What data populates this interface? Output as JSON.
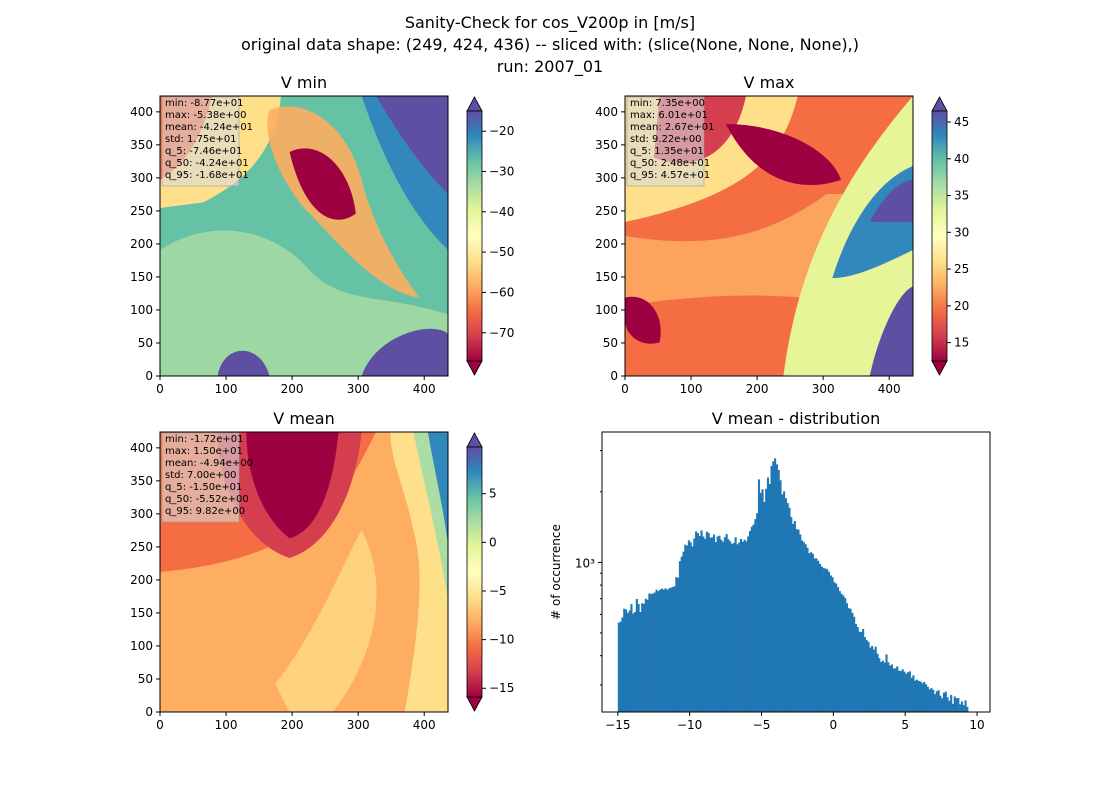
{
  "figure": {
    "title_lines": [
      "Sanity-Check for cos_V200p in [m/s]",
      "original data shape: (249, 424, 436) -- sliced with: (slice(None, None, None),)",
      "run: 2007_01"
    ]
  },
  "colors": {
    "colormap": "Spectral",
    "histogram_bar": "#1f77b4",
    "stats_box_bg": "#d9d9d9",
    "axis": "#000000"
  },
  "chart_data": [
    {
      "type": "heatmap",
      "title": "V min",
      "xlim": [
        0,
        436
      ],
      "ylim": [
        0,
        424
      ],
      "x_ticks": [
        0,
        100,
        200,
        300,
        400
      ],
      "y_ticks": [
        0,
        50,
        100,
        150,
        200,
        250,
        300,
        350,
        400
      ],
      "colorbar": {
        "vmin": -77,
        "vmax": -15,
        "ticks": [
          -70,
          -60,
          -50,
          -40,
          -30,
          -20
        ],
        "extend": "both"
      },
      "stats": [
        "min: -8.77e+01",
        "max: -5.38e+00",
        "mean: -4.24e+01",
        "std: 1.75e+01",
        "q_5: -7.46e+01",
        "q_50: -4.24e+01",
        "q_95: -1.68e+01"
      ]
    },
    {
      "type": "heatmap",
      "title": "V max",
      "xlim": [
        0,
        436
      ],
      "ylim": [
        0,
        424
      ],
      "x_ticks": [
        0,
        100,
        200,
        300,
        400
      ],
      "y_ticks": [
        0,
        50,
        100,
        150,
        200,
        250,
        300,
        350,
        400
      ],
      "colorbar": {
        "vmin": 12.5,
        "vmax": 46.5,
        "ticks": [
          15,
          20,
          25,
          30,
          35,
          40,
          45
        ],
        "extend": "both"
      },
      "stats": [
        "min: 7.35e+00",
        "max: 6.01e+01",
        "mean: 2.67e+01",
        "std: 9.22e+00",
        "q_5: 1.35e+01",
        "q_50: 2.48e+01",
        "q_95: 4.57e+01"
      ]
    },
    {
      "type": "heatmap",
      "title": "V mean",
      "xlim": [
        0,
        436
      ],
      "ylim": [
        0,
        424
      ],
      "x_ticks": [
        0,
        100,
        200,
        300,
        400
      ],
      "y_ticks": [
        0,
        50,
        100,
        150,
        200,
        250,
        300,
        350,
        400
      ],
      "colorbar": {
        "vmin": -15.9,
        "vmax": 9.8,
        "ticks": [
          -15,
          -10,
          -5,
          0,
          5
        ],
        "extend": "both"
      },
      "stats": [
        "min: -1.72e+01",
        "max: 1.50e+01",
        "mean: -4.94e+00",
        "std: 7.00e+00",
        "q_5: -1.50e+01",
        "q_50: -5.52e+00",
        "q_95: 9.82e+00"
      ]
    },
    {
      "type": "bar",
      "title": "V mean - distribution",
      "ylabel": "# of occurrence",
      "yscale": "log",
      "xlim": [
        -16.1,
        10.9
      ],
      "ylim": [
        230,
        3600
      ],
      "x_ticks": [
        -15,
        -10,
        -5,
        0,
        5,
        10
      ],
      "y_tick_labels": [
        {
          "value": 1000,
          "label": "10³"
        }
      ],
      "bins": {
        "start": -15.0,
        "width": 0.125
      },
      "counts": [
        553,
        559,
        582,
        635,
        629,
        609,
        623,
        664,
        605,
        614,
        698,
        664,
        614,
        670,
        665,
        700,
        693,
        737,
        733,
        737,
        744,
        765,
        754,
        765,
        773,
        765,
        775,
        765,
        775,
        780,
        785,
        790,
        865,
        860,
        1012,
        1058,
        1112,
        1190,
        1180,
        1242,
        1218,
        1170,
        1265,
        1356,
        1334,
        1298,
        1370,
        1290,
        1262,
        1352,
        1336,
        1274,
        1280,
        1315,
        1220,
        1290,
        1300,
        1250,
        1225,
        1280,
        1320,
        1255,
        1230,
        1200,
        1210,
        1280,
        1195,
        1215,
        1260,
        1225,
        1250,
        1230,
        1290,
        1360,
        1420,
        1450,
        1530,
        1620,
        2260,
        1980,
        2050,
        1810,
        2060,
        2300,
        2160,
        2580,
        2700,
        2780,
        2620,
        2480,
        2240,
        1950,
        2010,
        1880,
        1790,
        1710,
        1560,
        1460,
        1500,
        1385,
        1380,
        1315,
        1240,
        1220,
        1195,
        1155,
        1095,
        1105,
        1090,
        1040,
        1040,
        1015,
        985,
        960,
        945,
        942,
        935,
        912,
        880,
        864,
        822,
        812,
        785,
        754,
        735,
        722,
        705,
        670,
        638,
        634,
        609,
        586,
        545,
        530,
        506,
        505,
        520,
        480,
        466,
        458,
        433,
        440,
        425,
        437,
        408,
        390,
        376,
        381,
        374,
        405,
        375,
        363,
        367,
        353,
        353,
        360,
        345,
        344,
        350,
        342,
        335,
        340,
        343,
        322,
        330,
        313,
        316,
        312,
        310,
        305,
        309,
        302,
        295,
        287,
        291,
        286,
        274,
        282,
        285,
        270,
        263,
        278,
        281,
        266,
        257,
        272,
        249,
        268,
        263,
        264,
        248,
        255,
        246,
        258,
        242
      ]
    }
  ]
}
